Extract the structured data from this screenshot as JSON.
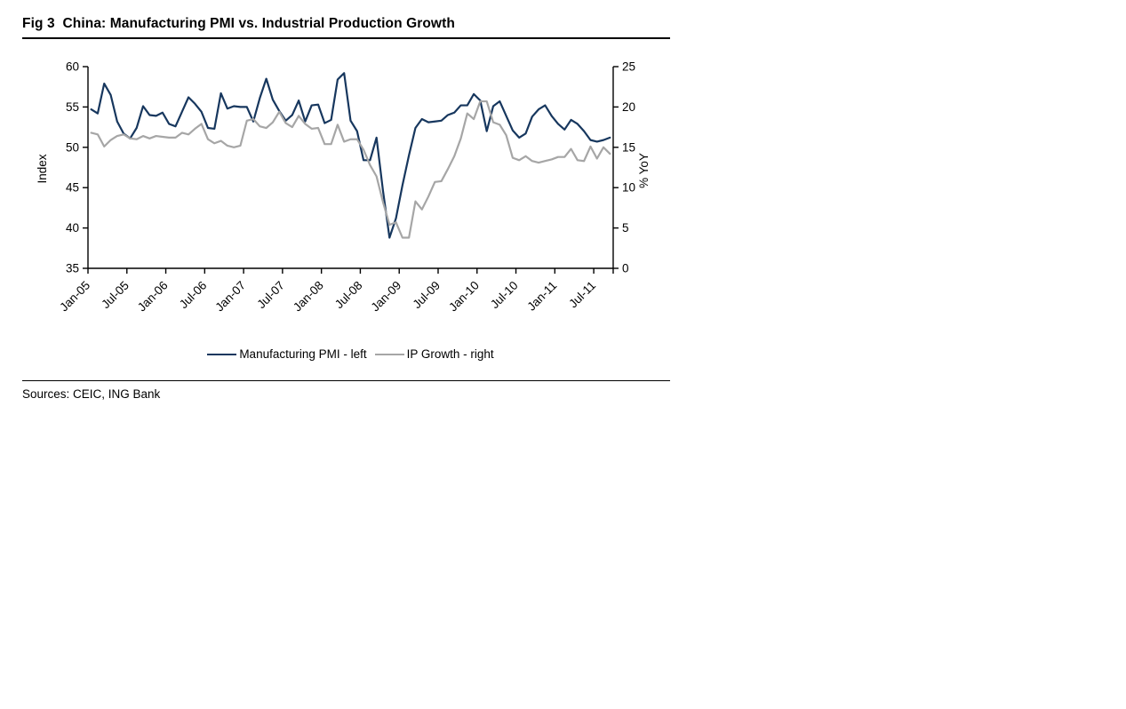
{
  "figure": {
    "title": "Fig 3  China: Manufacturing PMI vs. Industrial Production Growth",
    "sources": "Sources: CEIC, ING Bank"
  },
  "colors": {
    "pmi_line": "#17375e",
    "ip_line": "#a6a6a6",
    "axis": "#000000",
    "background": "#ffffff"
  },
  "chart_data": {
    "type": "line",
    "title": "China: Manufacturing PMI vs. Industrial Production Growth",
    "grid": false,
    "legend_position": "bottom",
    "left_axis": {
      "label": "Index",
      "min": 35,
      "max": 60,
      "ticks": [
        35,
        40,
        45,
        50,
        55,
        60
      ]
    },
    "right_axis": {
      "label": "% YoY",
      "min": 0,
      "max": 25,
      "ticks": [
        0,
        5,
        10,
        15,
        20,
        25
      ]
    },
    "x_axis": {
      "start": "Jan-05",
      "end": "Sep-11",
      "frequency": "monthly",
      "tick_labels": [
        "Jan-05",
        "Jul-05",
        "Jan-06",
        "Jul-06",
        "Jan-07",
        "Jul-07",
        "Jan-08",
        "Jul-08",
        "Jan-09",
        "Jul-09",
        "Jan-10",
        "Jul-10",
        "Jan-11",
        "Jul-11"
      ],
      "label_interval_months": 6
    },
    "series": [
      {
        "name": "Manufacturing PMI - left",
        "axis": "left",
        "color": "#17375e",
        "values": [
          54.7,
          54.2,
          57.9,
          56.5,
          53.2,
          51.7,
          51.1,
          52.4,
          55.1,
          54.0,
          53.9,
          54.3,
          52.9,
          52.6,
          54.4,
          56.2,
          55.4,
          54.4,
          52.4,
          52.3,
          56.7,
          54.8,
          55.1,
          55.0,
          55.0,
          53.2,
          56.1,
          58.5,
          55.9,
          54.5,
          53.3,
          54.0,
          55.8,
          53.2,
          55.2,
          55.3,
          53.0,
          53.4,
          58.4,
          59.2,
          53.3,
          52.0,
          48.4,
          48.4,
          51.2,
          44.6,
          38.8,
          41.2,
          45.3,
          49.0,
          52.4,
          53.5,
          53.1,
          53.2,
          53.3,
          54.0,
          54.3,
          55.2,
          55.2,
          56.6,
          55.8,
          52.0,
          55.1,
          55.7,
          53.9,
          52.1,
          51.2,
          51.7,
          53.8,
          54.7,
          55.2,
          53.9,
          52.9,
          52.2,
          53.4,
          52.9,
          52.0,
          50.9,
          50.7,
          50.9,
          51.2
        ]
      },
      {
        "name": "IP Growth - right",
        "axis": "right",
        "color": "#a6a6a6",
        "values": [
          16.8,
          16.6,
          15.1,
          15.9,
          16.4,
          16.6,
          16.1,
          16.0,
          16.4,
          16.1,
          16.4,
          16.3,
          16.2,
          16.2,
          16.8,
          16.6,
          17.3,
          17.9,
          16.0,
          15.5,
          15.8,
          15.2,
          15.0,
          15.2,
          18.3,
          18.5,
          17.6,
          17.4,
          18.1,
          19.4,
          18.0,
          17.5,
          18.9,
          17.9,
          17.3,
          17.4,
          15.4,
          15.4,
          17.8,
          15.7,
          16.0,
          16.0,
          14.7,
          12.8,
          11.4,
          8.2,
          5.4,
          5.7,
          3.8,
          3.8,
          8.3,
          7.3,
          8.9,
          10.7,
          10.8,
          12.3,
          13.9,
          16.1,
          19.2,
          18.5,
          20.7,
          20.7,
          18.1,
          17.8,
          16.5,
          13.7,
          13.4,
          13.9,
          13.3,
          13.1,
          13.3,
          13.5,
          13.8,
          13.8,
          14.8,
          13.4,
          13.3,
          15.1,
          13.6,
          15.0,
          14.2
        ]
      }
    ]
  }
}
